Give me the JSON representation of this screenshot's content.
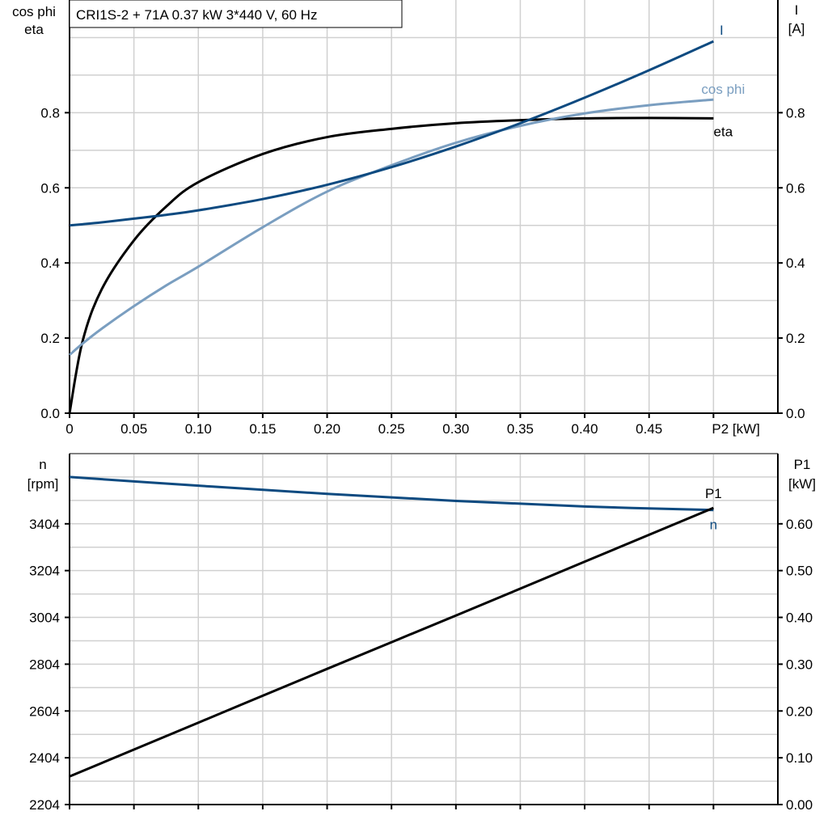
{
  "title": "CRI1S-2 + 71A   0.37 kW   3*440 V, 60 Hz",
  "colors": {
    "I": "#0d4a80",
    "cos_phi": "#7a9ec0",
    "eta": "#000000",
    "n": "#0d4a80",
    "P1": "#000000",
    "grid": "#d0d0d0"
  },
  "chart_data": [
    {
      "type": "line",
      "xlabel": "P2 [kW]",
      "ylabel_left": [
        "cos phi",
        "eta"
      ],
      "ylabel_right": [
        "I",
        "[A]"
      ],
      "xlim": [
        0,
        0.55
      ],
      "ylim_left": [
        0,
        1.1
      ],
      "ylim_right": [
        0,
        1.1
      ],
      "xticks": [
        "0",
        "0.05",
        "0.10",
        "0.15",
        "0.20",
        "0.25",
        "0.30",
        "0.35",
        "0.40",
        "0.45"
      ],
      "xtick_values": [
        0,
        0.05,
        0.1,
        0.15,
        0.2,
        0.25,
        0.3,
        0.35,
        0.4,
        0.45
      ],
      "yticks_left": [
        "0.0",
        "0.2",
        "0.4",
        "0.6",
        "0.8"
      ],
      "yticks_right": [
        "0.0",
        "0.2",
        "0.4",
        "0.6",
        "0.8"
      ],
      "ytick_values": [
        0,
        0.2,
        0.4,
        0.6,
        0.8
      ],
      "grid": true,
      "x": [
        0,
        0.01,
        0.025,
        0.05,
        0.075,
        0.1,
        0.15,
        0.2,
        0.25,
        0.3,
        0.35,
        0.4,
        0.45,
        0.5
      ],
      "series": [
        {
          "name": "eta",
          "axis": "left",
          "values": [
            0,
            0.19,
            0.33,
            0.46,
            0.55,
            0.615,
            0.69,
            0.735,
            0.757,
            0.772,
            0.78,
            0.785,
            0.786,
            0.785
          ]
        },
        {
          "name": "cos phi",
          "axis": "left",
          "values": [
            0.155,
            0.185,
            0.225,
            0.285,
            0.34,
            0.39,
            0.495,
            0.59,
            0.66,
            0.72,
            0.765,
            0.798,
            0.82,
            0.835
          ]
        },
        {
          "name": "I",
          "axis": "right",
          "values": [
            0.5,
            0.503,
            0.508,
            0.518,
            0.528,
            0.54,
            0.57,
            0.608,
            0.655,
            0.71,
            0.772,
            0.84,
            0.913,
            0.99
          ]
        }
      ]
    },
    {
      "type": "line",
      "ylabel_left": [
        "n",
        "[rpm]"
      ],
      "ylabel_right": [
        "P1",
        "[kW]"
      ],
      "xlim": [
        0,
        0.55
      ],
      "ylim_left": [
        2204,
        3704
      ],
      "ylim_right": [
        0,
        0.75
      ],
      "yticks_left": [
        "2204",
        "2404",
        "2604",
        "2804",
        "3004",
        "3204",
        "3404"
      ],
      "ytick_values_left": [
        2204,
        2404,
        2604,
        2804,
        3004,
        3204,
        3404
      ],
      "yticks_right": [
        "0.00",
        "0.10",
        "0.20",
        "0.30",
        "0.40",
        "0.50",
        "0.60"
      ],
      "ytick_values_right": [
        0,
        0.1,
        0.2,
        0.3,
        0.4,
        0.5,
        0.6
      ],
      "grid": true,
      "x": [
        0,
        0.1,
        0.2,
        0.3,
        0.4,
        0.5
      ],
      "series": [
        {
          "name": "n",
          "axis": "left",
          "values": [
            3604,
            3567,
            3532,
            3502,
            3478,
            3463
          ]
        },
        {
          "name": "P1",
          "axis": "right",
          "values": [
            0.06,
            0.175,
            0.29,
            0.404,
            0.519,
            0.634
          ]
        }
      ]
    }
  ]
}
